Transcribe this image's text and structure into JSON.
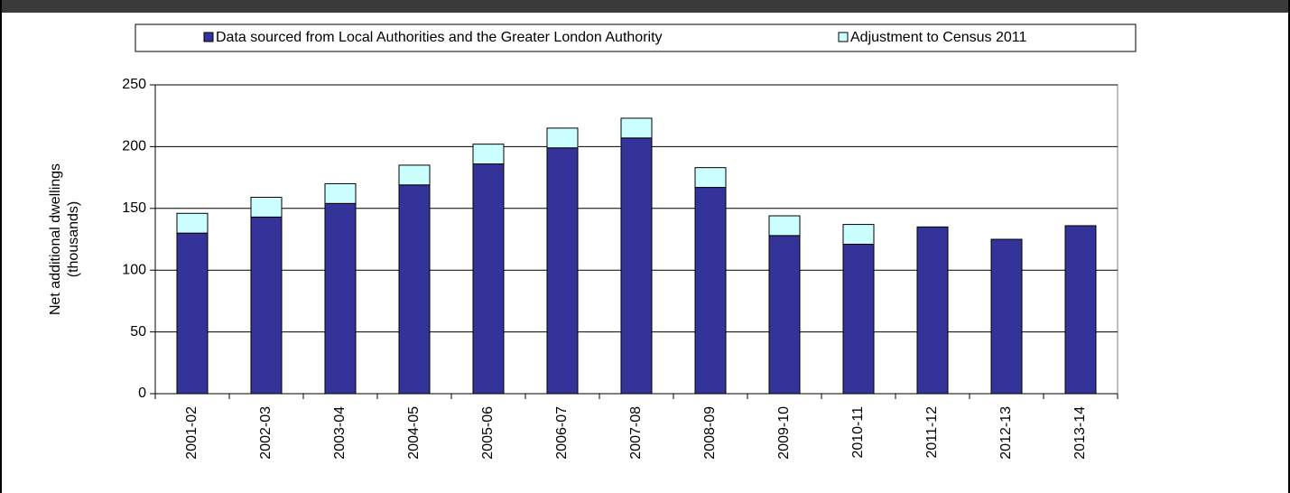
{
  "chart_data": {
    "type": "stacked_bar",
    "y_label": [
      "Net additional dwellings",
      "(thousands)"
    ],
    "categories": [
      "2001-02",
      "2002-03",
      "2003-04",
      "2004-05",
      "2005-06",
      "2006-07",
      "2007-08",
      "2008-09",
      "2009-10",
      "2010-11",
      "2011-12",
      "2012-13",
      "2013-14"
    ],
    "series": [
      {
        "name": "Data sourced from Local Authorities and the Greater London Authority",
        "color": "#333399",
        "values": [
          130,
          143,
          154,
          169,
          186,
          199,
          207,
          167,
          128,
          121,
          135,
          125,
          136
        ]
      },
      {
        "name": "Adjustment to Census 2011",
        "color": "#ccffff",
        "values": [
          16,
          16,
          16,
          16,
          16,
          16,
          16,
          16,
          16,
          16,
          null,
          null,
          null
        ]
      }
    ],
    "ylim": [
      0,
      250
    ],
    "yticks": [
      0,
      50,
      100,
      150,
      200,
      250
    ],
    "grid": true
  }
}
